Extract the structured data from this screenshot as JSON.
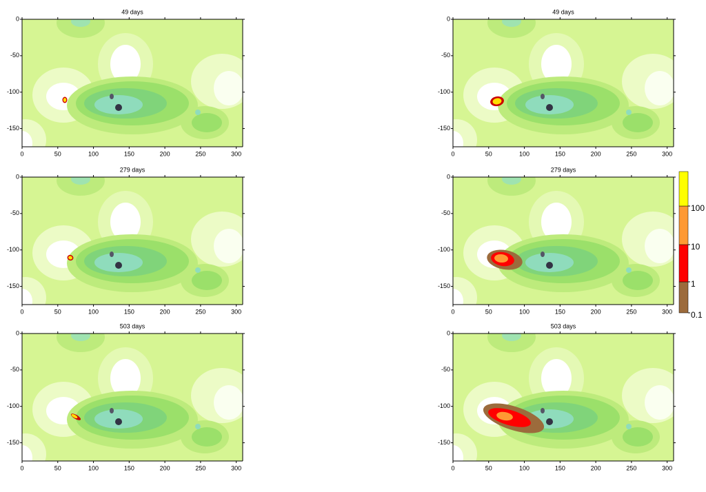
{
  "chart_data": [
    {
      "type": "contour",
      "title": "49 days",
      "xlim": [
        0,
        309
      ],
      "ylim": [
        -175,
        0
      ],
      "xticks": [
        0,
        50,
        100,
        150,
        200,
        250,
        300
      ],
      "yticks": [
        0,
        -50,
        -100,
        -150
      ]
    },
    {
      "type": "contour",
      "title": "49 days",
      "xlim": [
        0,
        309
      ],
      "ylim": [
        -175,
        0
      ],
      "xticks": [
        0,
        50,
        100,
        150,
        200,
        250,
        300
      ],
      "yticks": [
        0,
        -50,
        -100,
        -150
      ]
    },
    {
      "type": "contour",
      "title": "279 days",
      "xlim": [
        0,
        309
      ],
      "ylim": [
        -175,
        0
      ],
      "xticks": [
        0,
        50,
        100,
        150,
        200,
        250,
        300
      ],
      "yticks": [
        0,
        -50,
        -100,
        -150
      ]
    },
    {
      "type": "contour",
      "title": "279 days",
      "xlim": [
        0,
        309
      ],
      "ylim": [
        -175,
        0
      ],
      "xticks": [
        0,
        50,
        100,
        150,
        200,
        250,
        300
      ],
      "yticks": [
        0,
        -50,
        -100,
        -150
      ]
    },
    {
      "type": "contour",
      "title": "503 days",
      "xlim": [
        0,
        309
      ],
      "ylim": [
        -175,
        0
      ],
      "xticks": [
        0,
        50,
        100,
        150,
        200,
        250,
        300
      ],
      "yticks": [
        0,
        -50,
        -100,
        -150
      ]
    },
    {
      "type": "contour",
      "title": "503 days",
      "xlim": [
        0,
        309
      ],
      "ylim": [
        -175,
        0
      ],
      "xticks": [
        0,
        50,
        100,
        150,
        200,
        250,
        300
      ],
      "yticks": [
        0,
        -50,
        -100,
        -150
      ]
    }
  ],
  "colorbar": {
    "ticks": [
      0.1,
      1,
      10,
      100
    ],
    "colors": [
      "#9c6b3c",
      "#ff0000",
      "#ff9933",
      "#ffff00"
    ]
  }
}
